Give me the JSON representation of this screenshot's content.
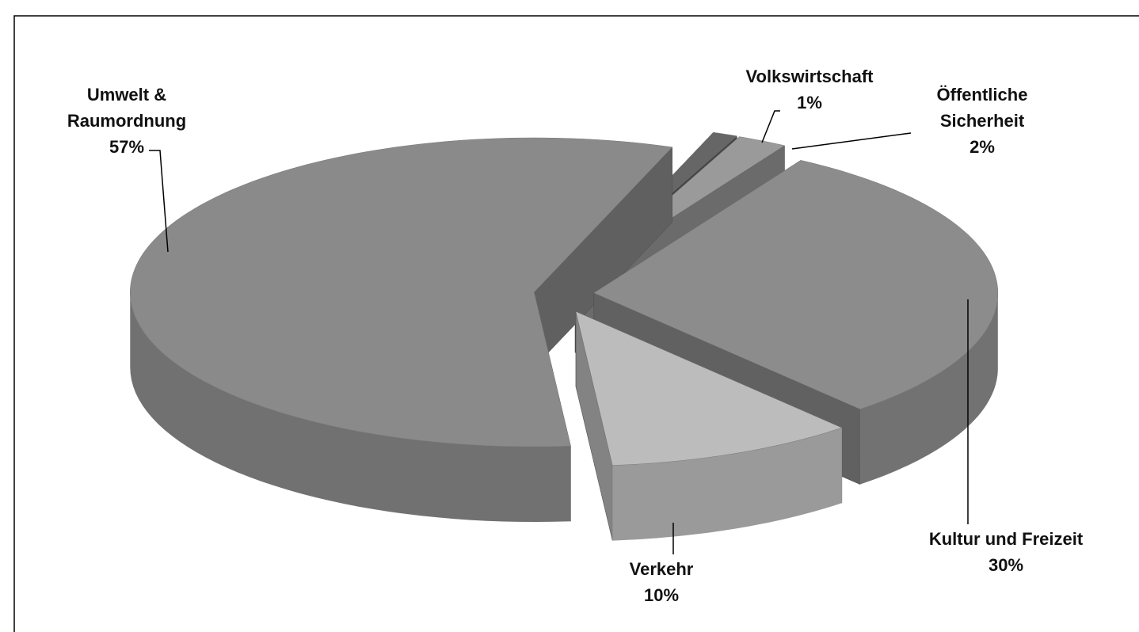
{
  "chart_data": {
    "type": "pie",
    "categories": [
      "Umwelt & Raumordnung",
      "Volkswirtschaft",
      "Öffentliche Sicherheit",
      "Kultur und Freizeit",
      "Verkehr"
    ],
    "values": [
      57,
      1,
      2,
      30,
      10
    ],
    "value_labels": [
      "57%",
      "1%",
      "2%",
      "30%",
      "10%"
    ],
    "colors": [
      "#8a8a8a",
      "#666666",
      "#9a9a9a",
      "#8c8c8c",
      "#bcbcbc"
    ]
  }
}
